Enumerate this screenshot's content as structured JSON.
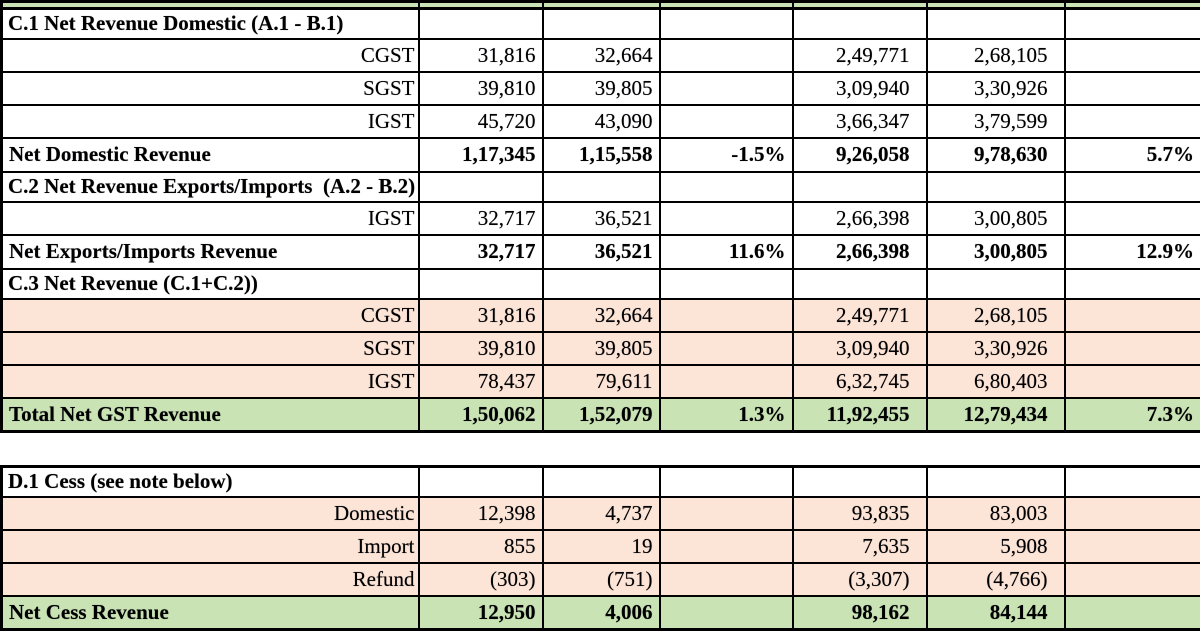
{
  "colors": {
    "white": "#ffffff",
    "peach": "#FCE4D6",
    "green": "#C9E3B4",
    "border": "#000000",
    "text": "#000000"
  },
  "table1": {
    "name": "gst-net-revenue-table",
    "rows": [
      {
        "kind": "partial",
        "bg": "green",
        "label": "",
        "values": [
          "",
          "",
          "",
          "",
          "",
          ""
        ]
      },
      {
        "kind": "section",
        "bg": "white",
        "label": "C.1 Net Revenue Domestic (A.1 - B.1)",
        "values": [
          "",
          "",
          "",
          "",
          "",
          ""
        ]
      },
      {
        "kind": "sub",
        "bg": "white",
        "label": "CGST",
        "values": [
          "31,816",
          "32,664",
          "",
          "2,49,771",
          "2,68,105",
          ""
        ]
      },
      {
        "kind": "sub",
        "bg": "white",
        "label": "SGST",
        "values": [
          "39,810",
          "39,805",
          "",
          "3,09,940",
          "3,30,926",
          ""
        ]
      },
      {
        "kind": "sub",
        "bg": "white",
        "label": "IGST",
        "values": [
          "45,720",
          "43,090",
          "",
          "3,66,347",
          "3,79,599",
          ""
        ]
      },
      {
        "kind": "total",
        "bg": "white",
        "label": "Net Domestic Revenue",
        "values": [
          "1,17,345",
          "1,15,558",
          "-1.5%",
          "9,26,058",
          "9,78,630",
          "5.7%"
        ]
      },
      {
        "kind": "section",
        "bg": "white",
        "label": "C.2 Net Revenue Exports/Imports  (A.2 - B.2)",
        "values": [
          "",
          "",
          "",
          "",
          "",
          ""
        ]
      },
      {
        "kind": "sub",
        "bg": "white",
        "label": "IGST",
        "values": [
          "32,717",
          "36,521",
          "",
          "2,66,398",
          "3,00,805",
          ""
        ]
      },
      {
        "kind": "total",
        "bg": "white",
        "label": "Net Exports/Imports Revenue",
        "values": [
          "32,717",
          "36,521",
          "11.6%",
          "2,66,398",
          "3,00,805",
          "12.9%"
        ]
      },
      {
        "kind": "section",
        "bg": "white",
        "label": "C.3 Net Revenue (C.1+C.2))",
        "values": [
          "",
          "",
          "",
          "",
          "",
          ""
        ]
      },
      {
        "kind": "sub",
        "bg": "peach",
        "label": "CGST",
        "values": [
          "31,816",
          "32,664",
          "",
          "2,49,771",
          "2,68,105",
          ""
        ]
      },
      {
        "kind": "sub",
        "bg": "peach",
        "label": "SGST",
        "values": [
          "39,810",
          "39,805",
          "",
          "3,09,940",
          "3,30,926",
          ""
        ]
      },
      {
        "kind": "sub",
        "bg": "peach",
        "label": "IGST",
        "values": [
          "78,437",
          "79,611",
          "",
          "6,32,745",
          "6,80,403",
          ""
        ]
      },
      {
        "kind": "total",
        "bg": "green",
        "label": "Total Net GST Revenue",
        "values": [
          "1,50,062",
          "1,52,079",
          "1.3%",
          "11,92,455",
          "12,79,434",
          "7.3%"
        ]
      }
    ]
  },
  "table2": {
    "name": "cess-table",
    "rows": [
      {
        "kind": "section",
        "bg": "white",
        "label": "D.1 Cess (see note below)",
        "values": [
          "",
          "",
          "",
          "",
          "",
          ""
        ]
      },
      {
        "kind": "sub",
        "bg": "peach",
        "label": "Domestic",
        "values": [
          "12,398",
          "4,737",
          "",
          "93,835",
          "83,003",
          ""
        ]
      },
      {
        "kind": "sub",
        "bg": "peach",
        "label": "Import",
        "values": [
          "855",
          "19",
          "",
          "7,635",
          "5,908",
          ""
        ]
      },
      {
        "kind": "sub",
        "bg": "peach",
        "label": "Refund",
        "values": [
          "(303)",
          "(751)",
          "",
          "(3,307)",
          "(4,766)",
          ""
        ]
      },
      {
        "kind": "total",
        "bg": "green",
        "label": "Net Cess Revenue",
        "values": [
          "12,950",
          "4,006",
          "",
          "98,162",
          "84,144",
          ""
        ]
      }
    ]
  }
}
